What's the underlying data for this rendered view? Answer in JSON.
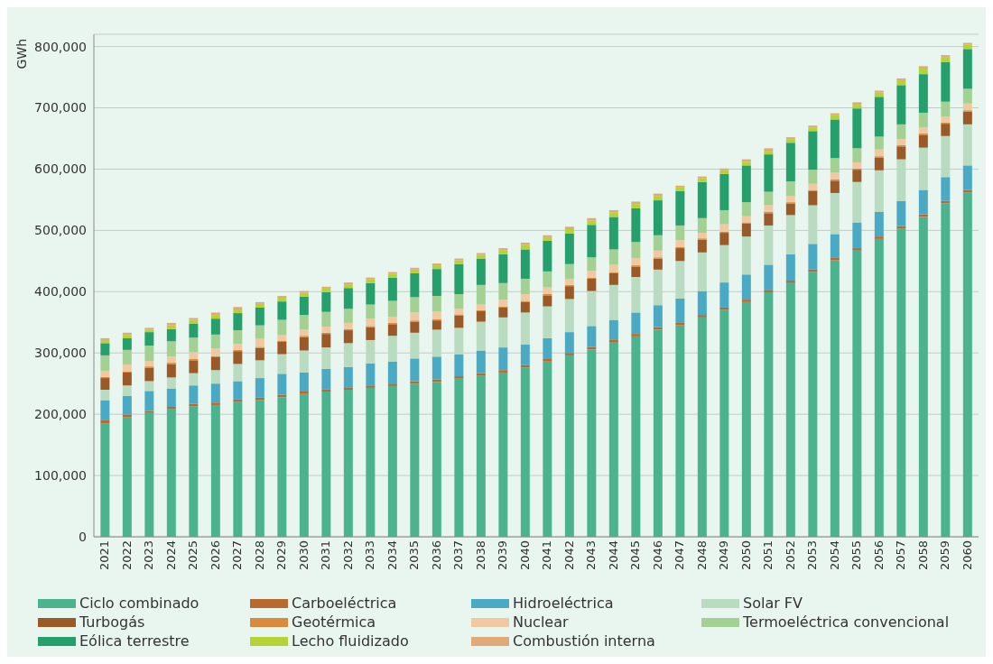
{
  "chart_data": {
    "type": "bar",
    "stacked": true,
    "ylabel": "GWh",
    "categories": [
      "2021",
      "2022",
      "2023",
      "2024",
      "2025",
      "2026",
      "2027",
      "2028",
      "2029",
      "2030",
      "2031",
      "2032",
      "2033",
      "2034",
      "2035",
      "2036",
      "2037",
      "2038",
      "2039",
      "2040",
      "2041",
      "2042",
      "2043",
      "2044",
      "2045",
      "2046",
      "2047",
      "2048",
      "2049",
      "2050",
      "2051",
      "2052",
      "2053",
      "2054",
      "2055",
      "2056",
      "2057",
      "2058",
      "2059",
      "2060"
    ],
    "ylim": [
      0,
      820000
    ],
    "yticks": [
      {
        "value": 0,
        "label": "0"
      },
      {
        "value": 100000,
        "label": "100,000"
      },
      {
        "value": 200000,
        "label": "200,000"
      },
      {
        "value": 300000,
        "label": "300,000"
      },
      {
        "value": 400000,
        "label": "400,000"
      },
      {
        "value": 500000,
        "label": "500,000"
      },
      {
        "value": 600000,
        "label": "600,000"
      },
      {
        "value": 700000,
        "label": "700,000"
      },
      {
        "value": 800000,
        "label": "800,000"
      }
    ],
    "grid": "y",
    "legend": "bottom",
    "series": [
      {
        "name": "Ciclo combinado",
        "color": "#4cb38f",
        "values": [
          185000,
          195000,
          202000,
          208000,
          213000,
          215000,
          220000,
          223000,
          228000,
          233000,
          237000,
          240000,
          243000,
          246000,
          250000,
          253000,
          258000,
          263000,
          268000,
          276000,
          286000,
          296000,
          306000,
          318000,
          327000,
          338000,
          345000,
          358000,
          370000,
          383000,
          399000,
          414000,
          432000,
          451000,
          467000,
          486000,
          503000,
          522000,
          544000,
          562000
        ]
      },
      {
        "name": "Carboeléctrica",
        "color": "#b86a2e",
        "values": [
          5000,
          4000,
          3000,
          4000,
          4000,
          4000,
          4000,
          4000,
          4000,
          4000,
          4000,
          4000,
          4000,
          4000,
          4000,
          4000,
          4000,
          4000,
          4000,
          4000,
          4000,
          4000,
          4000,
          4000,
          4000,
          4000,
          4000,
          4000,
          4000,
          4000,
          4000,
          4000,
          4000,
          4000,
          4000,
          4000,
          4000,
          4000,
          4000,
          4000
        ]
      },
      {
        "name": "Hidroeléctrica",
        "color": "#4aaac4",
        "values": [
          33000,
          31000,
          33000,
          30000,
          30000,
          31000,
          30000,
          32000,
          34000,
          31000,
          33000,
          33000,
          36000,
          36000,
          37000,
          37000,
          36000,
          37000,
          37000,
          34000,
          34000,
          34000,
          34000,
          32000,
          35000,
          36000,
          40000,
          39000,
          41000,
          41000,
          41000,
          43000,
          42000,
          39000,
          42000,
          40000,
          41000,
          40000,
          39000,
          40000
        ]
      },
      {
        "name": "Solar FV",
        "color": "#b9dcc0",
        "values": [
          17000,
          17000,
          16000,
          18000,
          20000,
          22000,
          28000,
          29000,
          32000,
          36000,
          35000,
          39000,
          38000,
          42000,
          42000,
          44000,
          43000,
          47000,
          49000,
          52000,
          52000,
          54000,
          57000,
          57000,
          58000,
          58000,
          61000,
          63000,
          61000,
          62000,
          64000,
          64000,
          63000,
          67000,
          66000,
          68000,
          68000,
          69000,
          67000,
          67000
        ]
      },
      {
        "name": "Turbogás",
        "color": "#9a5a28",
        "values": [
          19000,
          21000,
          22000,
          22000,
          21000,
          21000,
          21000,
          20000,
          20000,
          22000,
          22000,
          21000,
          21000,
          19000,
          18000,
          15000,
          20000,
          17000,
          16000,
          17000,
          18000,
          21000,
          20000,
          19000,
          17000,
          18000,
          21000,
          21000,
          20000,
          21000,
          20000,
          19000,
          23000,
          20000,
          20000,
          21000,
          21000,
          21000,
          20000,
          21000
        ]
      },
      {
        "name": "Geotérmica",
        "color": "#d98a3c",
        "values": [
          2000,
          2000,
          2000,
          2000,
          2000,
          2000,
          2000,
          2000,
          2000,
          2000,
          2000,
          2000,
          2000,
          2000,
          2000,
          2000,
          2000,
          2000,
          2000,
          2000,
          2000,
          2000,
          2000,
          2000,
          2000,
          2000,
          2000,
          2000,
          2000,
          2000,
          2000,
          2000,
          2000,
          2000,
          2000,
          2000,
          2000,
          2000,
          2000,
          2000
        ]
      },
      {
        "name": "Nuclear",
        "color": "#f0c9a3",
        "values": [
          10000,
          11000,
          9000,
          10000,
          11000,
          12000,
          10000,
          13000,
          9000,
          10000,
          10000,
          10000,
          12000,
          10000,
          13000,
          13000,
          9000,
          9000,
          11000,
          11000,
          11000,
          10000,
          11000,
          12000,
          12000,
          11000,
          11000,
          9000,
          12000,
          10000,
          11000,
          10000,
          10000,
          11000,
          10000,
          11000,
          10000,
          10000,
          10000,
          11000
        ]
      },
      {
        "name": "Termoeléctrica convencional",
        "color": "#a3d193",
        "values": [
          25000,
          24000,
          25000,
          25000,
          24000,
          23000,
          22000,
          22000,
          25000,
          24000,
          24000,
          23000,
          23000,
          26000,
          25000,
          25000,
          24000,
          32000,
          27000,
          25000,
          26000,
          24000,
          22000,
          25000,
          26000,
          25000,
          24000,
          24000,
          23000,
          23000,
          22000,
          24000,
          23000,
          24000,
          23000,
          21000,
          24000,
          24000,
          24000,
          24000
        ]
      },
      {
        "name": "Eólica terrestre",
        "color": "#25a06c",
        "values": [
          20000,
          19000,
          22000,
          20000,
          23000,
          26000,
          28000,
          29000,
          30000,
          30000,
          32000,
          34000,
          35000,
          38000,
          39000,
          44000,
          49000,
          43000,
          47000,
          48000,
          50000,
          50000,
          53000,
          53000,
          55000,
          57000,
          56000,
          59000,
          59000,
          60000,
          61000,
          63000,
          63000,
          63000,
          65000,
          65000,
          64000,
          63000,
          65000,
          65000
        ]
      },
      {
        "name": "Lecho fluidizado",
        "color": "#b5d334",
        "values": [
          5000,
          5000,
          4000,
          6000,
          6000,
          6000,
          6000,
          6000,
          6000,
          6000,
          6000,
          6000,
          6000,
          6000,
          6000,
          6000,
          6000,
          6000,
          6000,
          7000,
          6000,
          7000,
          7000,
          7000,
          7000,
          7000,
          6000,
          6000,
          6000,
          6000,
          6000,
          6000,
          6000,
          7000,
          6000,
          7000,
          8000,
          9000,
          7000,
          7000
        ]
      },
      {
        "name": "Combustión interna",
        "color": "#e0aa78",
        "values": [
          3000,
          4000,
          3000,
          4000,
          3000,
          4000,
          4000,
          3000,
          3000,
          3000,
          3000,
          3000,
          3000,
          3000,
          3000,
          3000,
          3000,
          3000,
          4000,
          4000,
          3000,
          4000,
          4000,
          4000,
          4000,
          4000,
          3000,
          3000,
          3000,
          4000,
          4000,
          3000,
          3000,
          3000,
          4000,
          3000,
          3000,
          4000,
          4000,
          3000
        ]
      }
    ]
  }
}
